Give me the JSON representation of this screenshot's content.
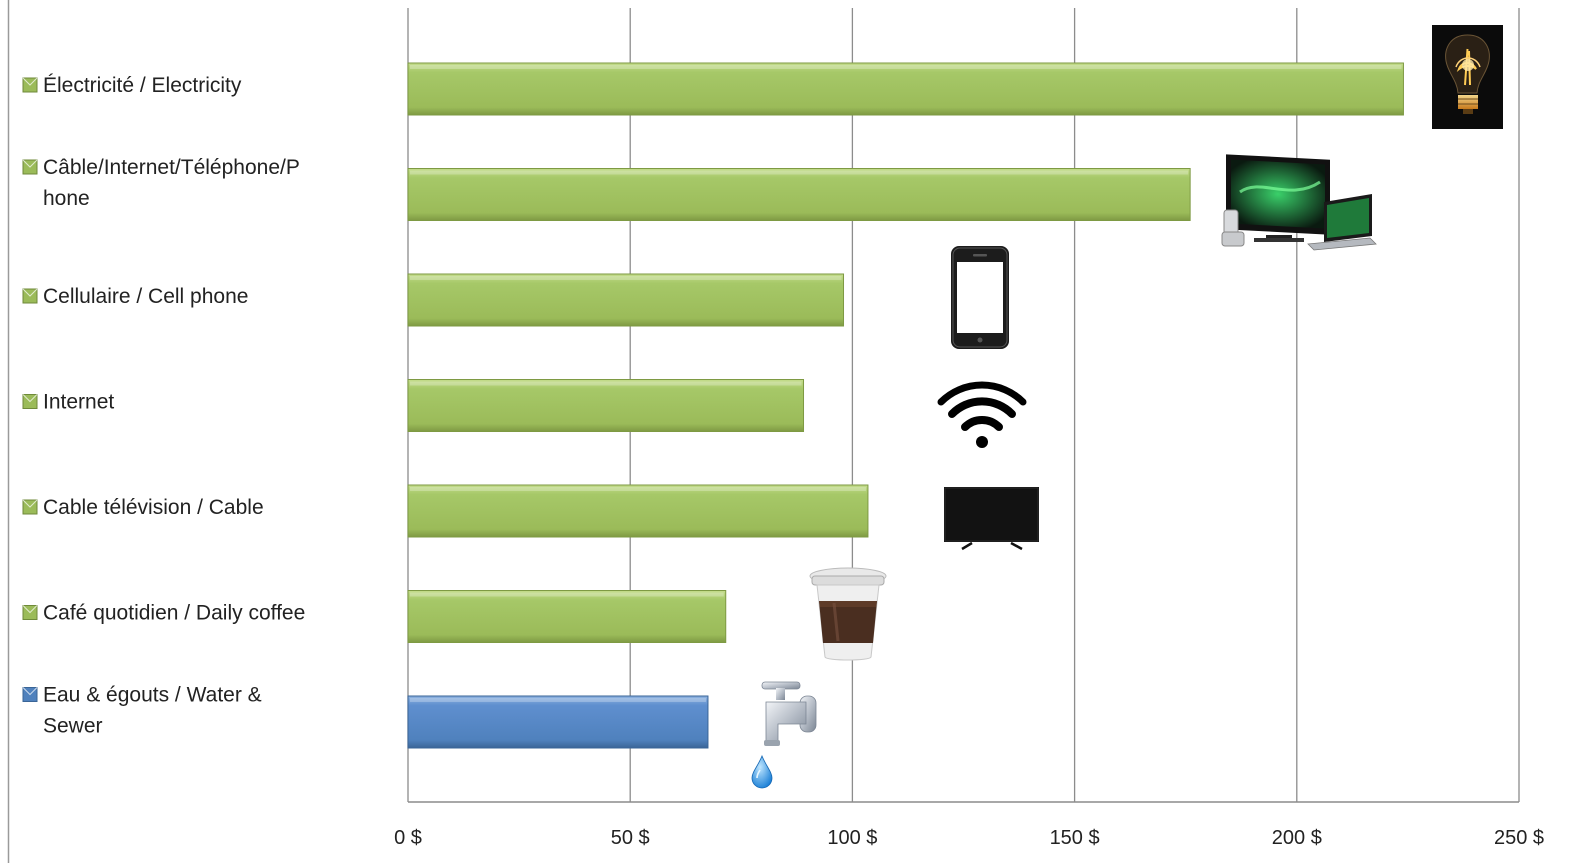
{
  "chart_data": {
    "type": "bar",
    "orientation": "horizontal",
    "categories": [
      [
        "Électricité / Electricity"
      ],
      [
        "Câble/Internet/Téléphone/P",
        "hone"
      ],
      [
        "Cellulaire / Cell phone"
      ],
      [
        "Internet"
      ],
      [
        "Cable télévision / Cable"
      ],
      [
        "Café quotidien / Daily coffee"
      ],
      [
        "Eau & égouts / Water &",
        "Sewer"
      ]
    ],
    "values": [
      224,
      176,
      98,
      89,
      103.5,
      71.5,
      67.5
    ],
    "bar_colors": [
      "#9bbb59",
      "#9bbb59",
      "#9bbb59",
      "#9bbb59",
      "#9bbb59",
      "#9bbb59",
      "#4f81bd"
    ],
    "icons": [
      "light-bulb-icon",
      "tv-laptop-phone-icon",
      "smartphone-icon",
      "wifi-icon",
      "television-icon",
      "coffee-cup-icon",
      "water-tap-icon"
    ],
    "x_ticks": [
      "0 $",
      "50 $",
      "100 $",
      "150 $",
      "200 $",
      "250 $"
    ],
    "xlim": [
      0,
      250
    ],
    "grid": true,
    "title": "",
    "xlabel": "",
    "ylabel": ""
  }
}
